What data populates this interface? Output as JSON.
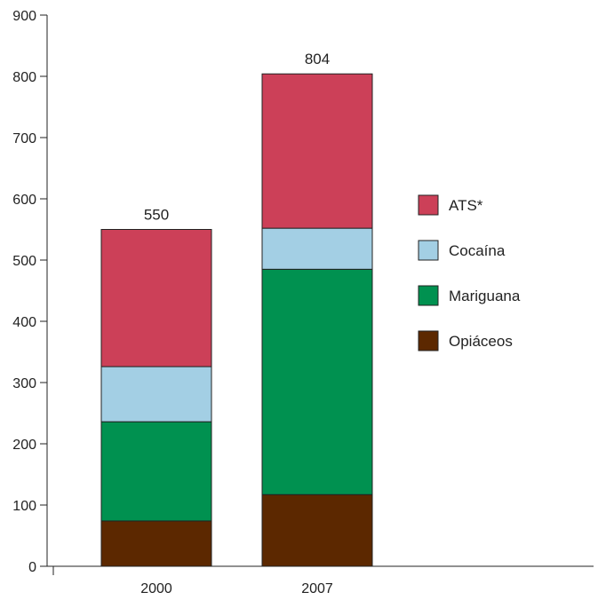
{
  "chart_data": {
    "type": "bar",
    "stacked": true,
    "categories": [
      "2000",
      "2007"
    ],
    "series": [
      {
        "name": "Opiáceos",
        "values": [
          74,
          117
        ],
        "color": "#5c2800"
      },
      {
        "name": "Mariguana",
        "values": [
          162,
          368
        ],
        "color": "#009150"
      },
      {
        "name": "Cocaína",
        "values": [
          90,
          67
        ],
        "color": "#a3cfe4"
      },
      {
        "name": "ATS*",
        "values": [
          224,
          252
        ],
        "color": "#cc4058"
      }
    ],
    "totals": [
      "550",
      "804"
    ],
    "yticks": [
      "0",
      "100",
      "200",
      "300",
      "400",
      "500",
      "600",
      "700",
      "800",
      "900"
    ],
    "ylim": [
      0,
      900
    ],
    "title": "",
    "xlabel": "",
    "ylabel": "",
    "grid": false,
    "legend_position": "right",
    "legend_order": [
      "ATS*",
      "Cocaína",
      "Mariguana",
      "Opiáceos"
    ]
  }
}
